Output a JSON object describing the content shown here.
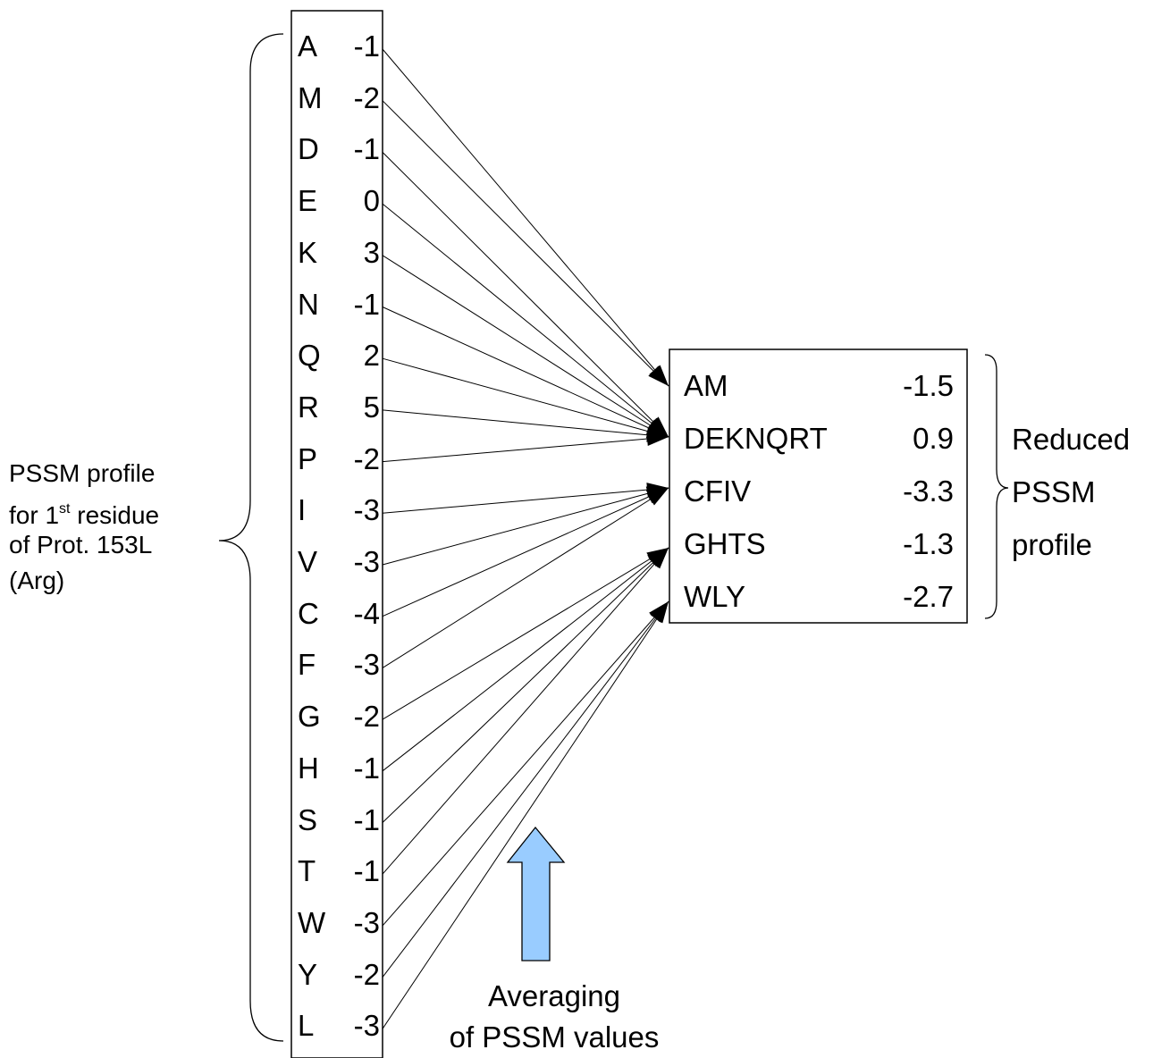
{
  "left_label": {
    "line1": "PSSM profile",
    "line2_prefix": "for 1",
    "line2_sup": "st",
    "line2_suffix": " residue",
    "line3": "of Prot. 153L",
    "line4": "(Arg)"
  },
  "residues": [
    {
      "code": "A",
      "value": "-1"
    },
    {
      "code": "M",
      "value": "-2"
    },
    {
      "code": "D",
      "value": "-1"
    },
    {
      "code": "E",
      "value": "0"
    },
    {
      "code": "K",
      "value": "3"
    },
    {
      "code": "N",
      "value": "-1"
    },
    {
      "code": "Q",
      "value": "2"
    },
    {
      "code": "R",
      "value": "5"
    },
    {
      "code": "P",
      "value": "-2"
    },
    {
      "code": "I",
      "value": "-3"
    },
    {
      "code": "V",
      "value": "-3"
    },
    {
      "code": "C",
      "value": "-4"
    },
    {
      "code": "F",
      "value": "-3"
    },
    {
      "code": "G",
      "value": "-2"
    },
    {
      "code": "H",
      "value": "-1"
    },
    {
      "code": "S",
      "value": "-1"
    },
    {
      "code": "T",
      "value": "-1"
    },
    {
      "code": "W",
      "value": "-3"
    },
    {
      "code": "Y",
      "value": "-2"
    },
    {
      "code": "L",
      "value": "-3"
    }
  ],
  "groups": [
    {
      "name": "AM",
      "value": "-1.5"
    },
    {
      "name": "DEKNQRT",
      "value": "0.9"
    },
    {
      "name": "CFIV",
      "value": "-3.3"
    },
    {
      "name": "GHTS",
      "value": "-1.3"
    },
    {
      "name": "WLY",
      "value": "-2.7"
    }
  ],
  "connections": [
    0,
    0,
    1,
    1,
    1,
    1,
    1,
    1,
    1,
    2,
    2,
    2,
    2,
    3,
    3,
    3,
    3,
    4,
    4,
    4
  ],
  "right_label": {
    "line1": "Reduced",
    "line2": "PSSM",
    "line3": "profile"
  },
  "averaging_label": {
    "line1": "Averaging",
    "line2": "of PSSM values"
  },
  "colors": {
    "up_arrow_fill": "#99ccff",
    "stroke": "#000000"
  }
}
